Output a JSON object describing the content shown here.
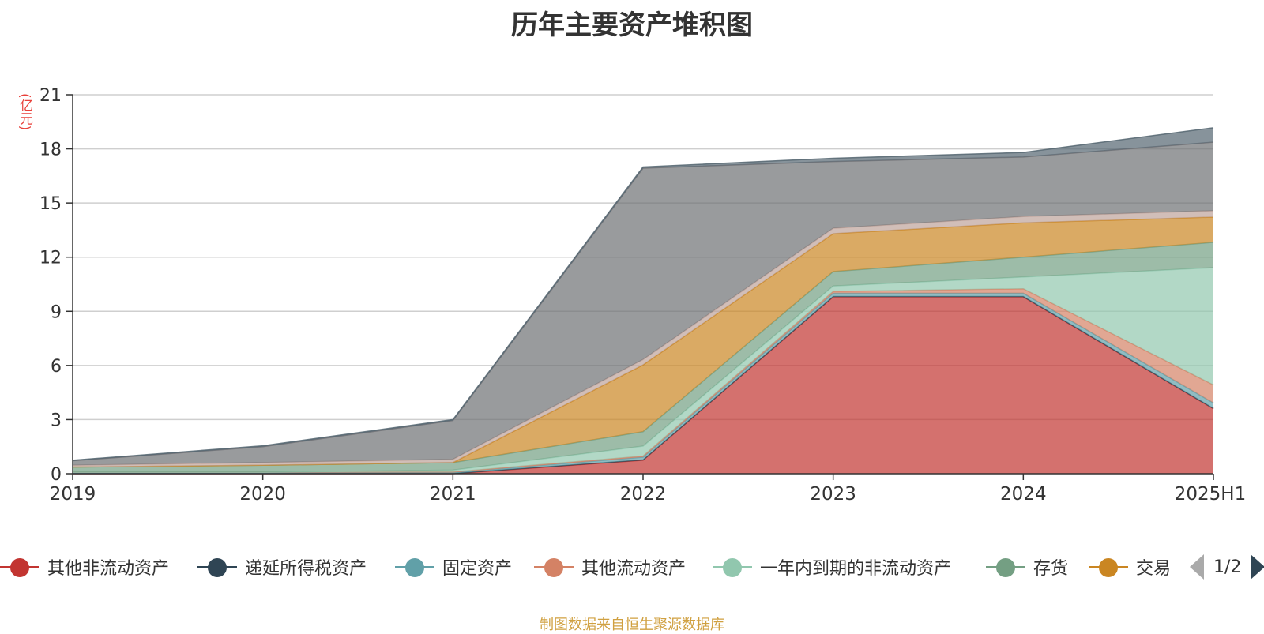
{
  "title": "历年主要资产堆积图",
  "footer": "制图数据来自恒生聚源数据库",
  "chart_data": {
    "type": "area",
    "stacked": true,
    "title": "历年主要资产堆积图",
    "ylabel": "(亿元)",
    "ylim": [
      0,
      21
    ],
    "yticks": [
      "0",
      "3",
      "6",
      "9",
      "12",
      "15",
      "18",
      "21"
    ],
    "categories": [
      "2019",
      "2020",
      "2021",
      "2022",
      "2023",
      "2024",
      "2025H1"
    ],
    "grid": true,
    "legend_position": "bottom",
    "series": [
      {
        "name": "其他非流动资产",
        "color": "#c23531",
        "values": [
          0.0,
          0.0,
          0.0,
          0.75,
          9.8,
          9.8,
          3.6
        ]
      },
      {
        "name": "递延所得税资产",
        "color": "#2f4554",
        "values": [
          0.02,
          0.02,
          0.02,
          0.02,
          0.02,
          0.02,
          0.02
        ]
      },
      {
        "name": "固定资产",
        "color": "#61a0a8",
        "values": [
          0.05,
          0.05,
          0.05,
          0.15,
          0.18,
          0.18,
          0.3
        ]
      },
      {
        "name": "其他流动资产",
        "color": "#d48265",
        "values": [
          0.02,
          0.02,
          0.03,
          0.06,
          0.1,
          0.25,
          1.0
        ]
      },
      {
        "name": "一年内到期的非流动资产",
        "color": "#91c7ae",
        "values": [
          0.0,
          0.0,
          0.1,
          0.55,
          0.3,
          0.65,
          6.5
        ]
      },
      {
        "name": "存货",
        "color": "#749f83",
        "values": [
          0.28,
          0.38,
          0.42,
          0.8,
          0.8,
          1.1,
          1.4
        ]
      },
      {
        "name": "交易",
        "color": "#ca8622",
        "values": [
          0.0,
          0.0,
          0.0,
          3.7,
          2.1,
          1.9,
          1.4
        ]
      },
      {
        "name": "",
        "color": "#bda29a",
        "values": [
          0.1,
          0.15,
          0.18,
          0.3,
          0.3,
          0.35,
          0.35
        ]
      },
      {
        "name": "",
        "color": "#6e7074",
        "values": [
          0.25,
          0.88,
          2.15,
          10.6,
          3.7,
          3.3,
          3.8
        ]
      },
      {
        "name": "",
        "color": "#546570",
        "values": [
          0.03,
          0.05,
          0.05,
          0.07,
          0.18,
          0.25,
          0.8
        ]
      }
    ]
  },
  "legend": {
    "items": [
      {
        "label": "其他非流动资产",
        "color": "#c23531"
      },
      {
        "label": "递延所得税资产",
        "color": "#2f4554"
      },
      {
        "label": "固定资产",
        "color": "#61a0a8"
      },
      {
        "label": "其他流动资产",
        "color": "#d48265"
      },
      {
        "label": "一年内到期的非流动资产",
        "color": "#91c7ae"
      },
      {
        "label": "存货",
        "color": "#749f83"
      },
      {
        "label": "交易",
        "color": "#ca8622"
      }
    ],
    "page_label": "1/2"
  }
}
